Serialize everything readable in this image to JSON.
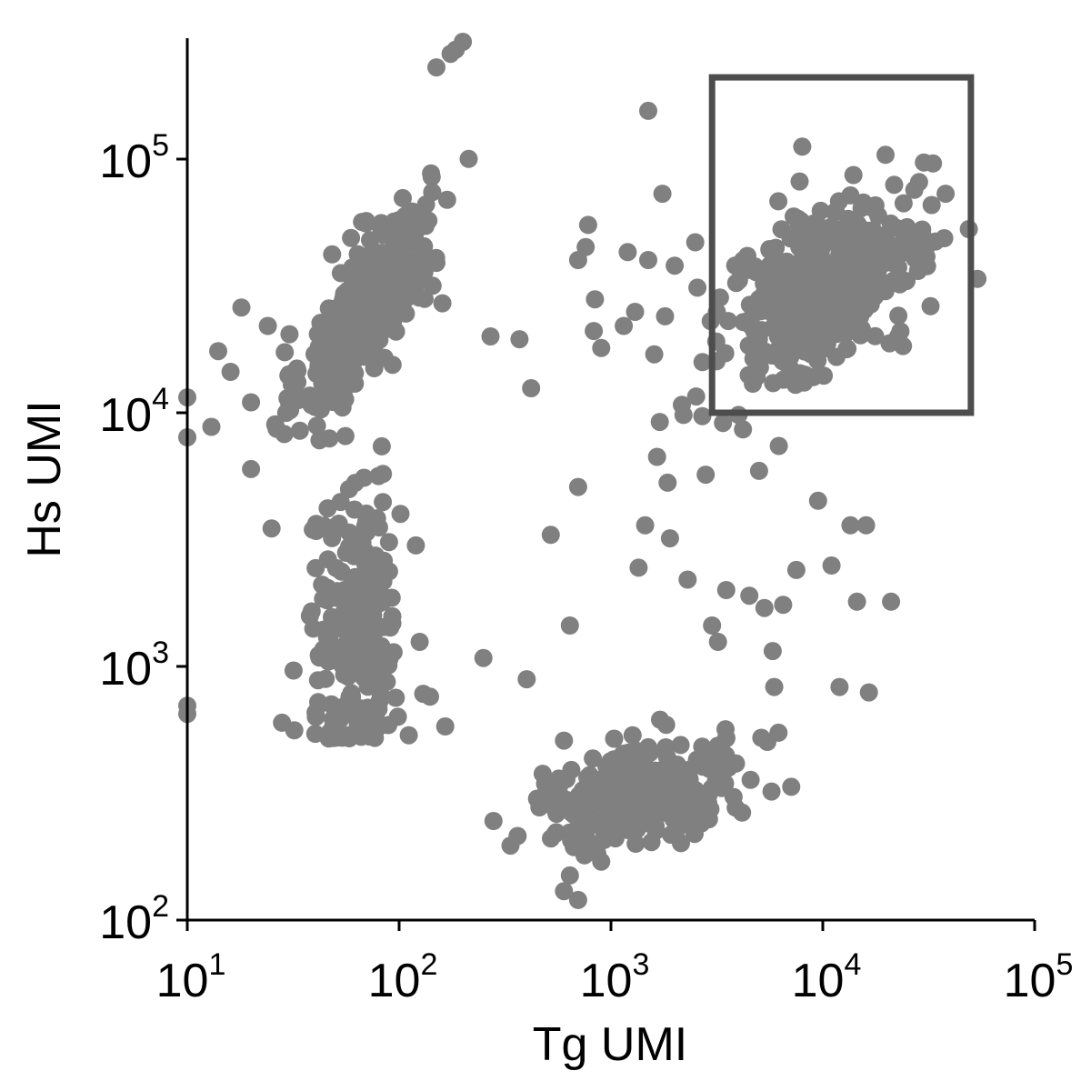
{
  "chart_data": {
    "type": "scatter",
    "xlabel": "Tg UMI",
    "ylabel": "Hs UMI",
    "x_scale": "log10",
    "y_scale": "log10",
    "xlim": [
      10,
      100000
    ],
    "ylim": [
      100,
      300000
    ],
    "x_ticks": [
      {
        "base": "10",
        "exp": "1"
      },
      {
        "base": "10",
        "exp": "2"
      },
      {
        "base": "10",
        "exp": "3"
      },
      {
        "base": "10",
        "exp": "4"
      },
      {
        "base": "10",
        "exp": "5"
      }
    ],
    "y_ticks": [
      {
        "base": "10",
        "exp": "2"
      },
      {
        "base": "10",
        "exp": "3"
      },
      {
        "base": "10",
        "exp": "4"
      },
      {
        "base": "10",
        "exp": "5"
      }
    ],
    "point_color": "#808080",
    "gate_color": "#4d4d4d",
    "gate": {
      "x": [
        3000,
        50000
      ],
      "y": [
        10000,
        210000
      ]
    },
    "clusters": [
      {
        "cx": 70,
        "cy": 26000,
        "sx": 0.15,
        "sy": 0.2,
        "corr": 0.75,
        "n": 420
      },
      {
        "cx": 62,
        "cy": 1300,
        "sx": 0.1,
        "sy": 0.28,
        "corr": 0.15,
        "n": 240
      },
      {
        "cx": 1400,
        "cy": 320,
        "sx": 0.25,
        "sy": 0.1,
        "corr": 0.2,
        "n": 280
      },
      {
        "cx": 10000,
        "cy": 31000,
        "sx": 0.22,
        "sy": 0.17,
        "corr": 0.4,
        "n": 420
      }
    ],
    "extra_points": [
      [
        10,
        11500
      ],
      [
        10,
        8000
      ],
      [
        10,
        700
      ],
      [
        10,
        650
      ],
      [
        13,
        8800
      ],
      [
        14,
        17500
      ],
      [
        16,
        14500
      ],
      [
        18,
        26000
      ],
      [
        20,
        11000
      ],
      [
        20,
        6000
      ],
      [
        24,
        22000
      ],
      [
        25,
        3500
      ],
      [
        26,
        9000
      ],
      [
        30,
        14000
      ],
      [
        34,
        8500
      ],
      [
        28,
        600
      ],
      [
        32,
        560
      ],
      [
        46,
        4200
      ],
      [
        58,
        5000
      ],
      [
        120,
        3000
      ],
      [
        125,
        1250
      ],
      [
        130,
        780
      ],
      [
        140,
        760
      ],
      [
        150,
        39000
      ],
      [
        160,
        27000
      ],
      [
        165,
        580
      ],
      [
        175,
        260000
      ],
      [
        185,
        270000
      ],
      [
        200,
        290000
      ],
      [
        150,
        230000
      ],
      [
        270,
        20000
      ],
      [
        370,
        19500
      ],
      [
        420,
        12500
      ],
      [
        250,
        1080
      ],
      [
        400,
        890
      ],
      [
        520,
        3300
      ],
      [
        640,
        1450
      ],
      [
        700,
        5100
      ],
      [
        700,
        40000
      ],
      [
        760,
        45000
      ],
      [
        780,
        55000
      ],
      [
        830,
        21000
      ],
      [
        840,
        28000
      ],
      [
        900,
        18000
      ],
      [
        1150,
        22000
      ],
      [
        1200,
        43000
      ],
      [
        1300,
        25000
      ],
      [
        1350,
        2450
      ],
      [
        1450,
        3600
      ],
      [
        1500,
        40000
      ],
      [
        1600,
        17000
      ],
      [
        1650,
        6700
      ],
      [
        1700,
        9200
      ],
      [
        1750,
        73000
      ],
      [
        1800,
        24000
      ],
      [
        1850,
        5300
      ],
      [
        1900,
        3200
      ],
      [
        2000,
        38000
      ],
      [
        2200,
        9800
      ],
      [
        2300,
        2200
      ],
      [
        2500,
        47000
      ],
      [
        2700,
        9700
      ],
      [
        2800,
        5700
      ],
      [
        3000,
        1450
      ],
      [
        3200,
        1250
      ],
      [
        3500,
        2000
      ],
      [
        4000,
        9800
      ],
      [
        4200,
        8600
      ],
      [
        4500,
        1900
      ],
      [
        5000,
        5900
      ],
      [
        5300,
        1700
      ],
      [
        5800,
        1150
      ],
      [
        5900,
        830
      ],
      [
        6200,
        7400
      ],
      [
        6500,
        1750
      ],
      [
        7500,
        2400
      ],
      [
        9500,
        4500
      ],
      [
        11000,
        2500
      ],
      [
        12000,
        830
      ],
      [
        13500,
        3600
      ],
      [
        14500,
        1800
      ],
      [
        16000,
        3600
      ],
      [
        16500,
        790
      ],
      [
        21000,
        1800
      ],
      [
        1500,
        155000
      ],
      [
        8000,
        112000
      ],
      [
        38000,
        73000
      ],
      [
        30000,
        97000
      ],
      [
        600,
        130
      ],
      [
        640,
        150
      ],
      [
        700,
        120
      ],
      [
        750,
        180
      ],
      [
        900,
        170
      ],
      [
        1050,
        210
      ],
      [
        600,
        510
      ],
      [
        1500,
        480
      ],
      [
        2700,
        420
      ],
      [
        3500,
        520
      ]
    ],
    "seed": 20240611
  }
}
